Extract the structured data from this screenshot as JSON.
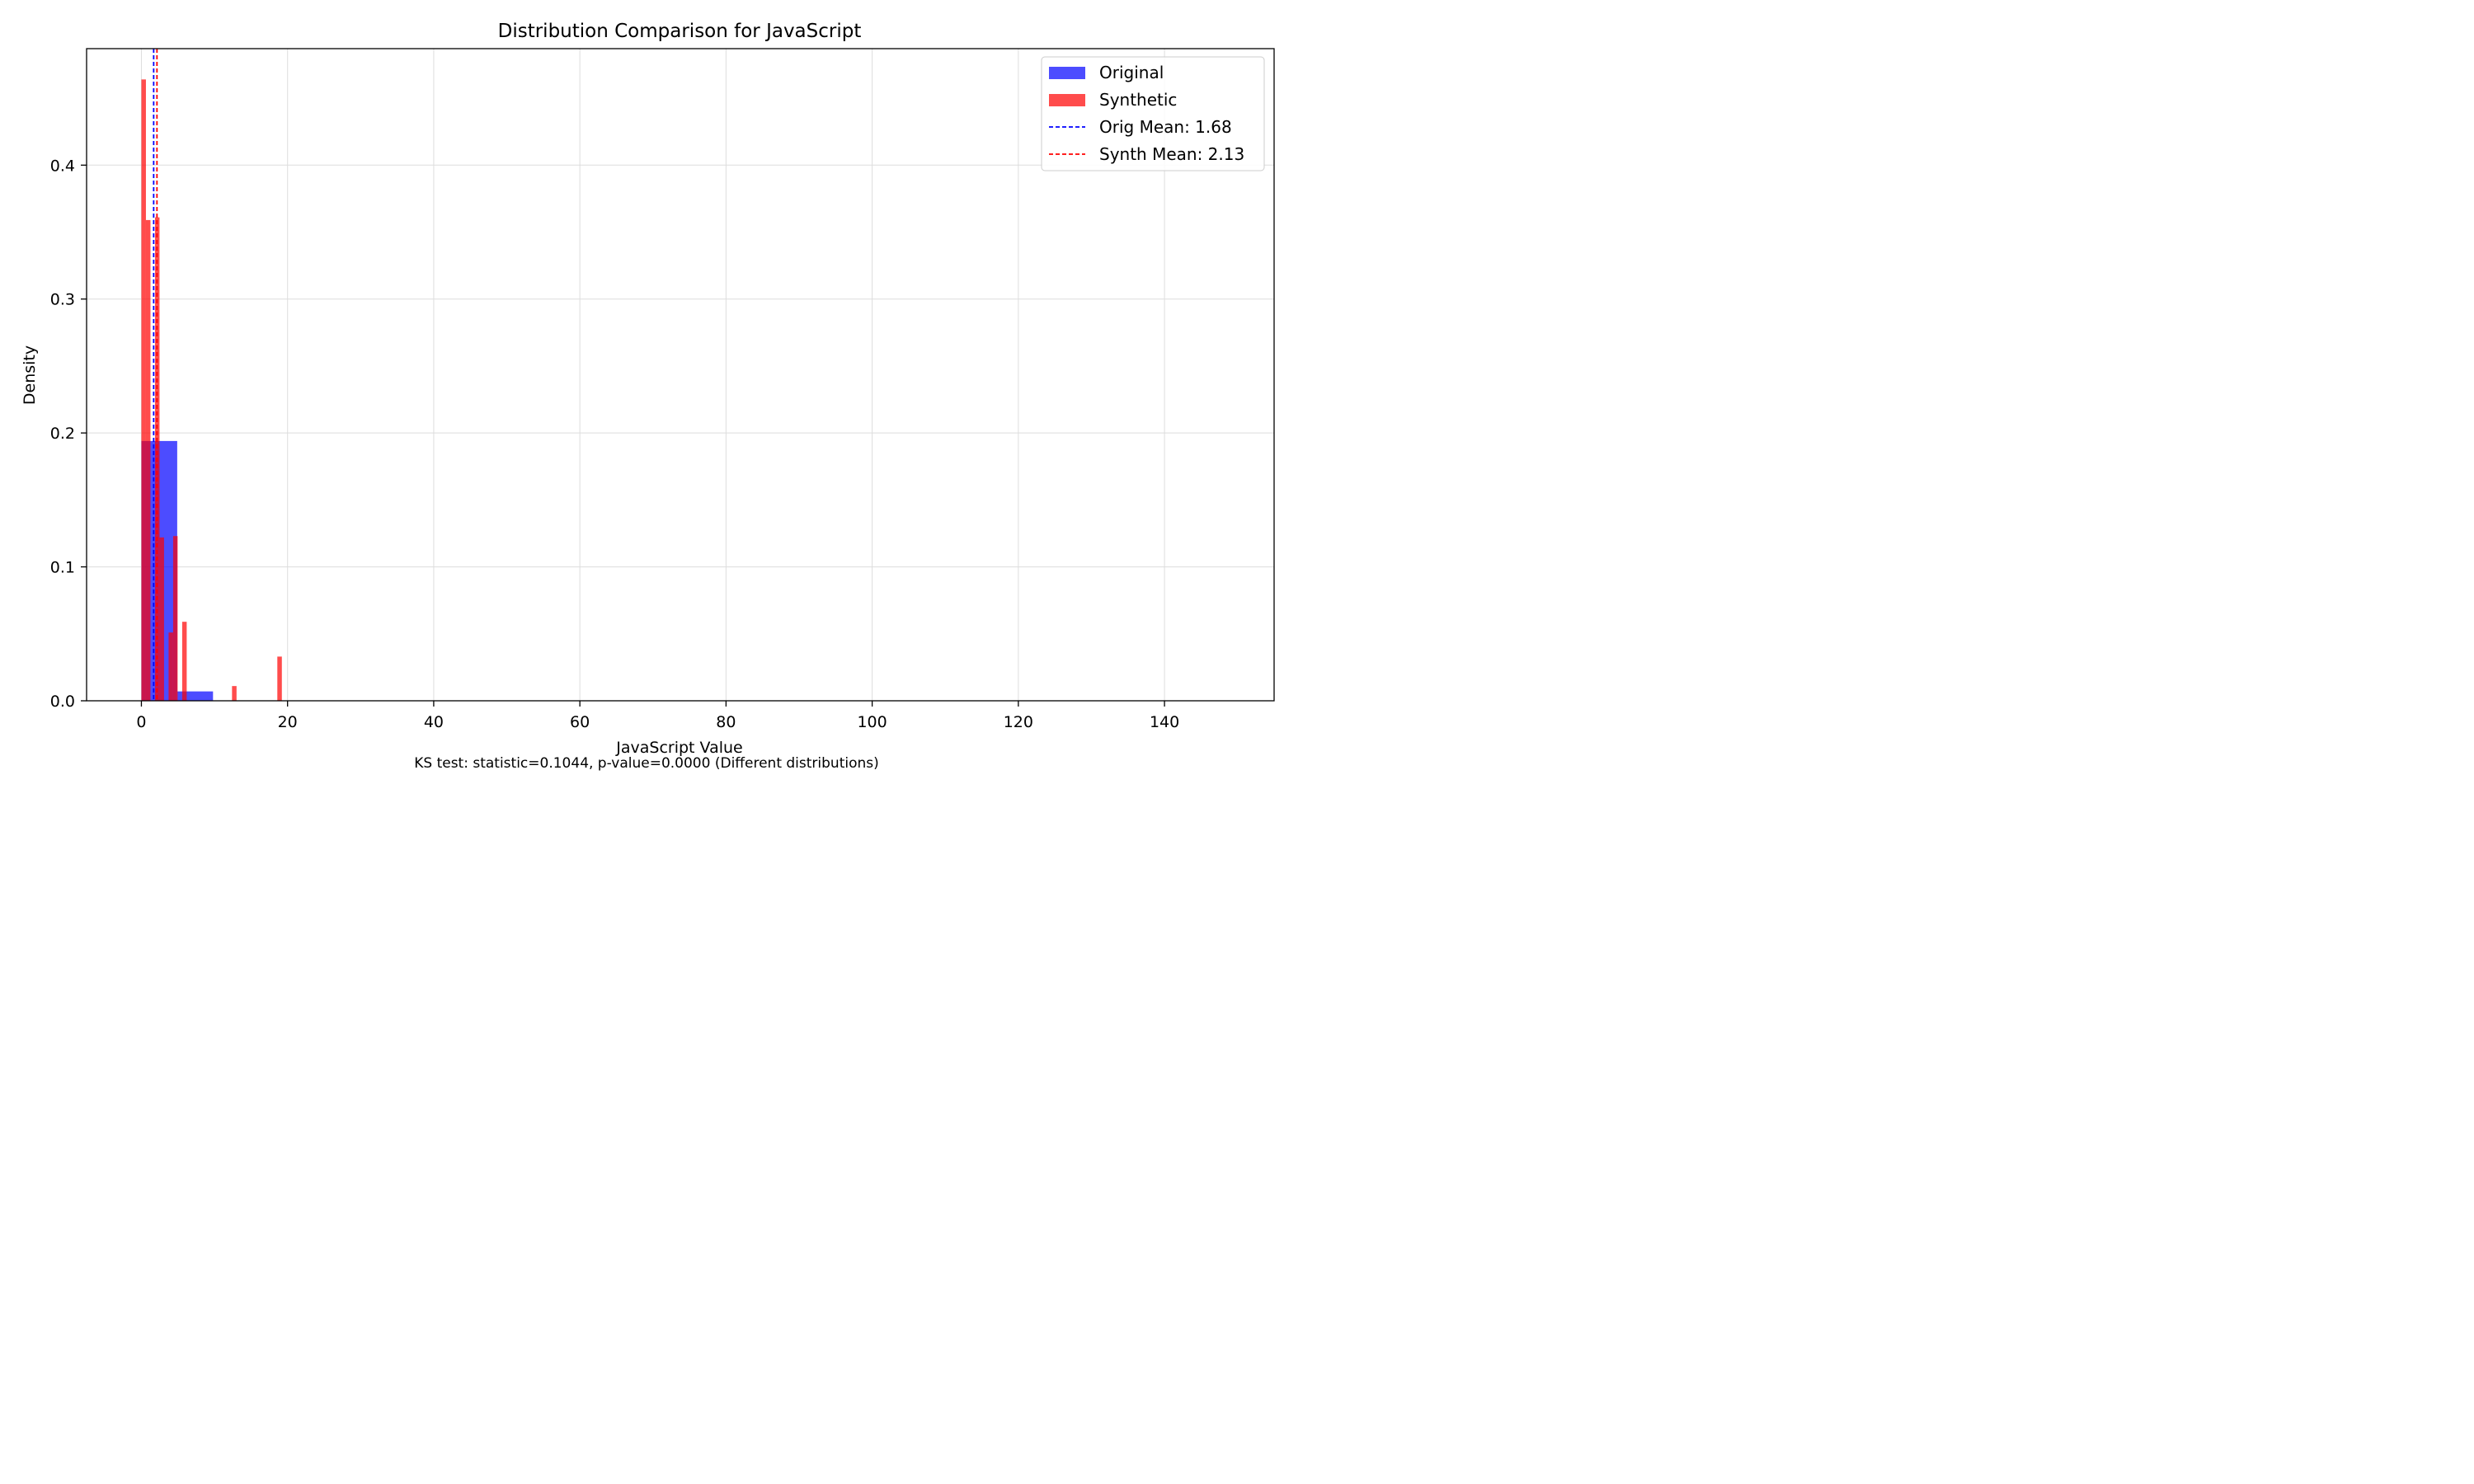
{
  "chart_data": {
    "type": "bar",
    "title": "Distribution Comparison for JavaScript",
    "xlabel": "JavaScript Value",
    "ylabel": "Density",
    "footnote": "KS test: statistic=0.1044, p-value=0.0000 (Different distributions)",
    "xlim": [
      -7.5,
      155
    ],
    "ylim": [
      0,
      0.487
    ],
    "xticks": [
      0,
      20,
      40,
      60,
      80,
      100,
      120,
      140
    ],
    "yticks": [
      0.0,
      0.1,
      0.2,
      0.3,
      0.4
    ],
    "ytick_labels": [
      "0.0",
      "0.1",
      "0.2",
      "0.3",
      "0.4"
    ],
    "grid": true,
    "legend_position": "upper right",
    "series": [
      {
        "name": "Original",
        "kind": "histogram",
        "color": "#0000ff",
        "alpha": 0.7,
        "bins": [
          {
            "x0": 0,
            "x1": 4.9,
            "density": 0.194
          },
          {
            "x0": 4.9,
            "x1": 9.8,
            "density": 0.007
          }
        ]
      },
      {
        "name": "Synthetic",
        "kind": "histogram",
        "color": "#ff0000",
        "alpha": 0.7,
        "bins": [
          {
            "x0": 0.0,
            "x1": 0.62,
            "density": 0.464
          },
          {
            "x0": 0.62,
            "x1": 1.24,
            "density": 0.359
          },
          {
            "x0": 1.86,
            "x1": 2.48,
            "density": 0.361
          },
          {
            "x0": 2.48,
            "x1": 3.1,
            "density": 0.122
          },
          {
            "x0": 3.72,
            "x1": 4.34,
            "density": 0.051
          },
          {
            "x0": 4.34,
            "x1": 4.96,
            "density": 0.123
          },
          {
            "x0": 5.58,
            "x1": 6.2,
            "density": 0.059
          },
          {
            "x0": 12.4,
            "x1": 13.02,
            "density": 0.011
          },
          {
            "x0": 18.6,
            "x1": 19.22,
            "density": 0.033
          }
        ]
      }
    ],
    "mean_lines": [
      {
        "name": "Orig Mean: 1.68",
        "value": 1.68,
        "color": "#0000ff",
        "dash": "dashed"
      },
      {
        "name": "Synth Mean: 2.13",
        "value": 2.13,
        "color": "#ff0000",
        "dash": "dashed"
      }
    ]
  }
}
